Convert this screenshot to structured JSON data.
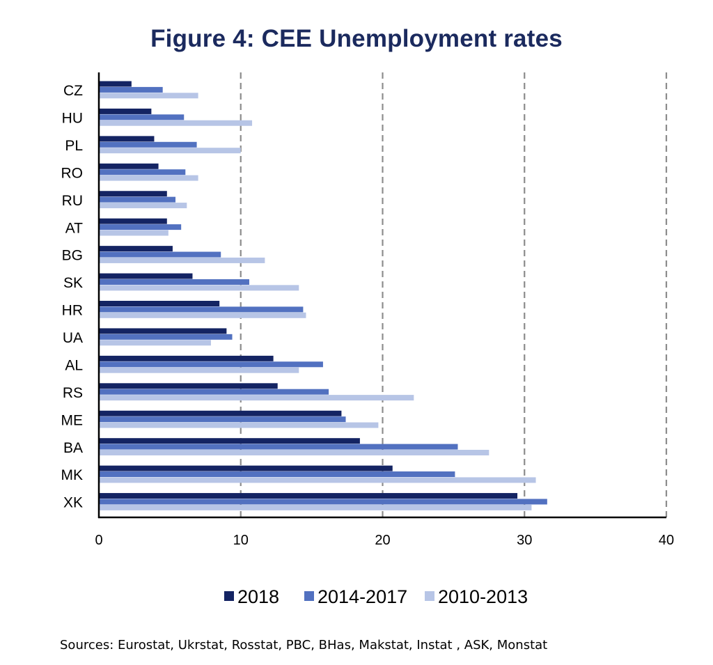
{
  "chart_data": {
    "type": "bar",
    "orientation": "horizontal",
    "title": "Figure 4: CEE Unemployment rates",
    "xlabel": "",
    "ylabel": "",
    "xlim": [
      0,
      40
    ],
    "xticks": [
      0,
      10,
      20,
      30,
      40
    ],
    "grid": "vertical dashed",
    "legend_position": "bottom",
    "categories": [
      "CZ",
      "HU",
      "PL",
      "RO",
      "RU",
      "AT",
      "BG",
      "SK",
      "HR",
      "UA",
      "AL",
      "RS",
      "ME",
      "BA",
      "MK",
      "XK"
    ],
    "series": [
      {
        "name": "2018",
        "color": "#142463",
        "values": [
          2.3,
          3.7,
          3.9,
          4.2,
          4.8,
          4.8,
          5.2,
          6.6,
          8.5,
          9.0,
          12.3,
          12.6,
          17.1,
          18.4,
          20.7,
          29.5
        ]
      },
      {
        "name": "2014-2017",
        "color": "#5271c0",
        "values": [
          4.5,
          6.0,
          6.9,
          6.1,
          5.4,
          5.8,
          8.6,
          10.6,
          14.4,
          9.4,
          15.8,
          16.2,
          17.4,
          25.3,
          25.1,
          31.6
        ]
      },
      {
        "name": "2010-2013",
        "color": "#b7c5e6",
        "values": [
          7.0,
          10.8,
          10.0,
          7.0,
          6.2,
          4.9,
          11.7,
          14.1,
          14.6,
          7.9,
          14.1,
          22.2,
          19.7,
          27.5,
          30.8,
          30.5
        ]
      }
    ],
    "source_note": "Sources: Eurostat, Ukrstat, Rosstat, PBC, BHas, Makstat, Instat , ASK, Monstat"
  }
}
